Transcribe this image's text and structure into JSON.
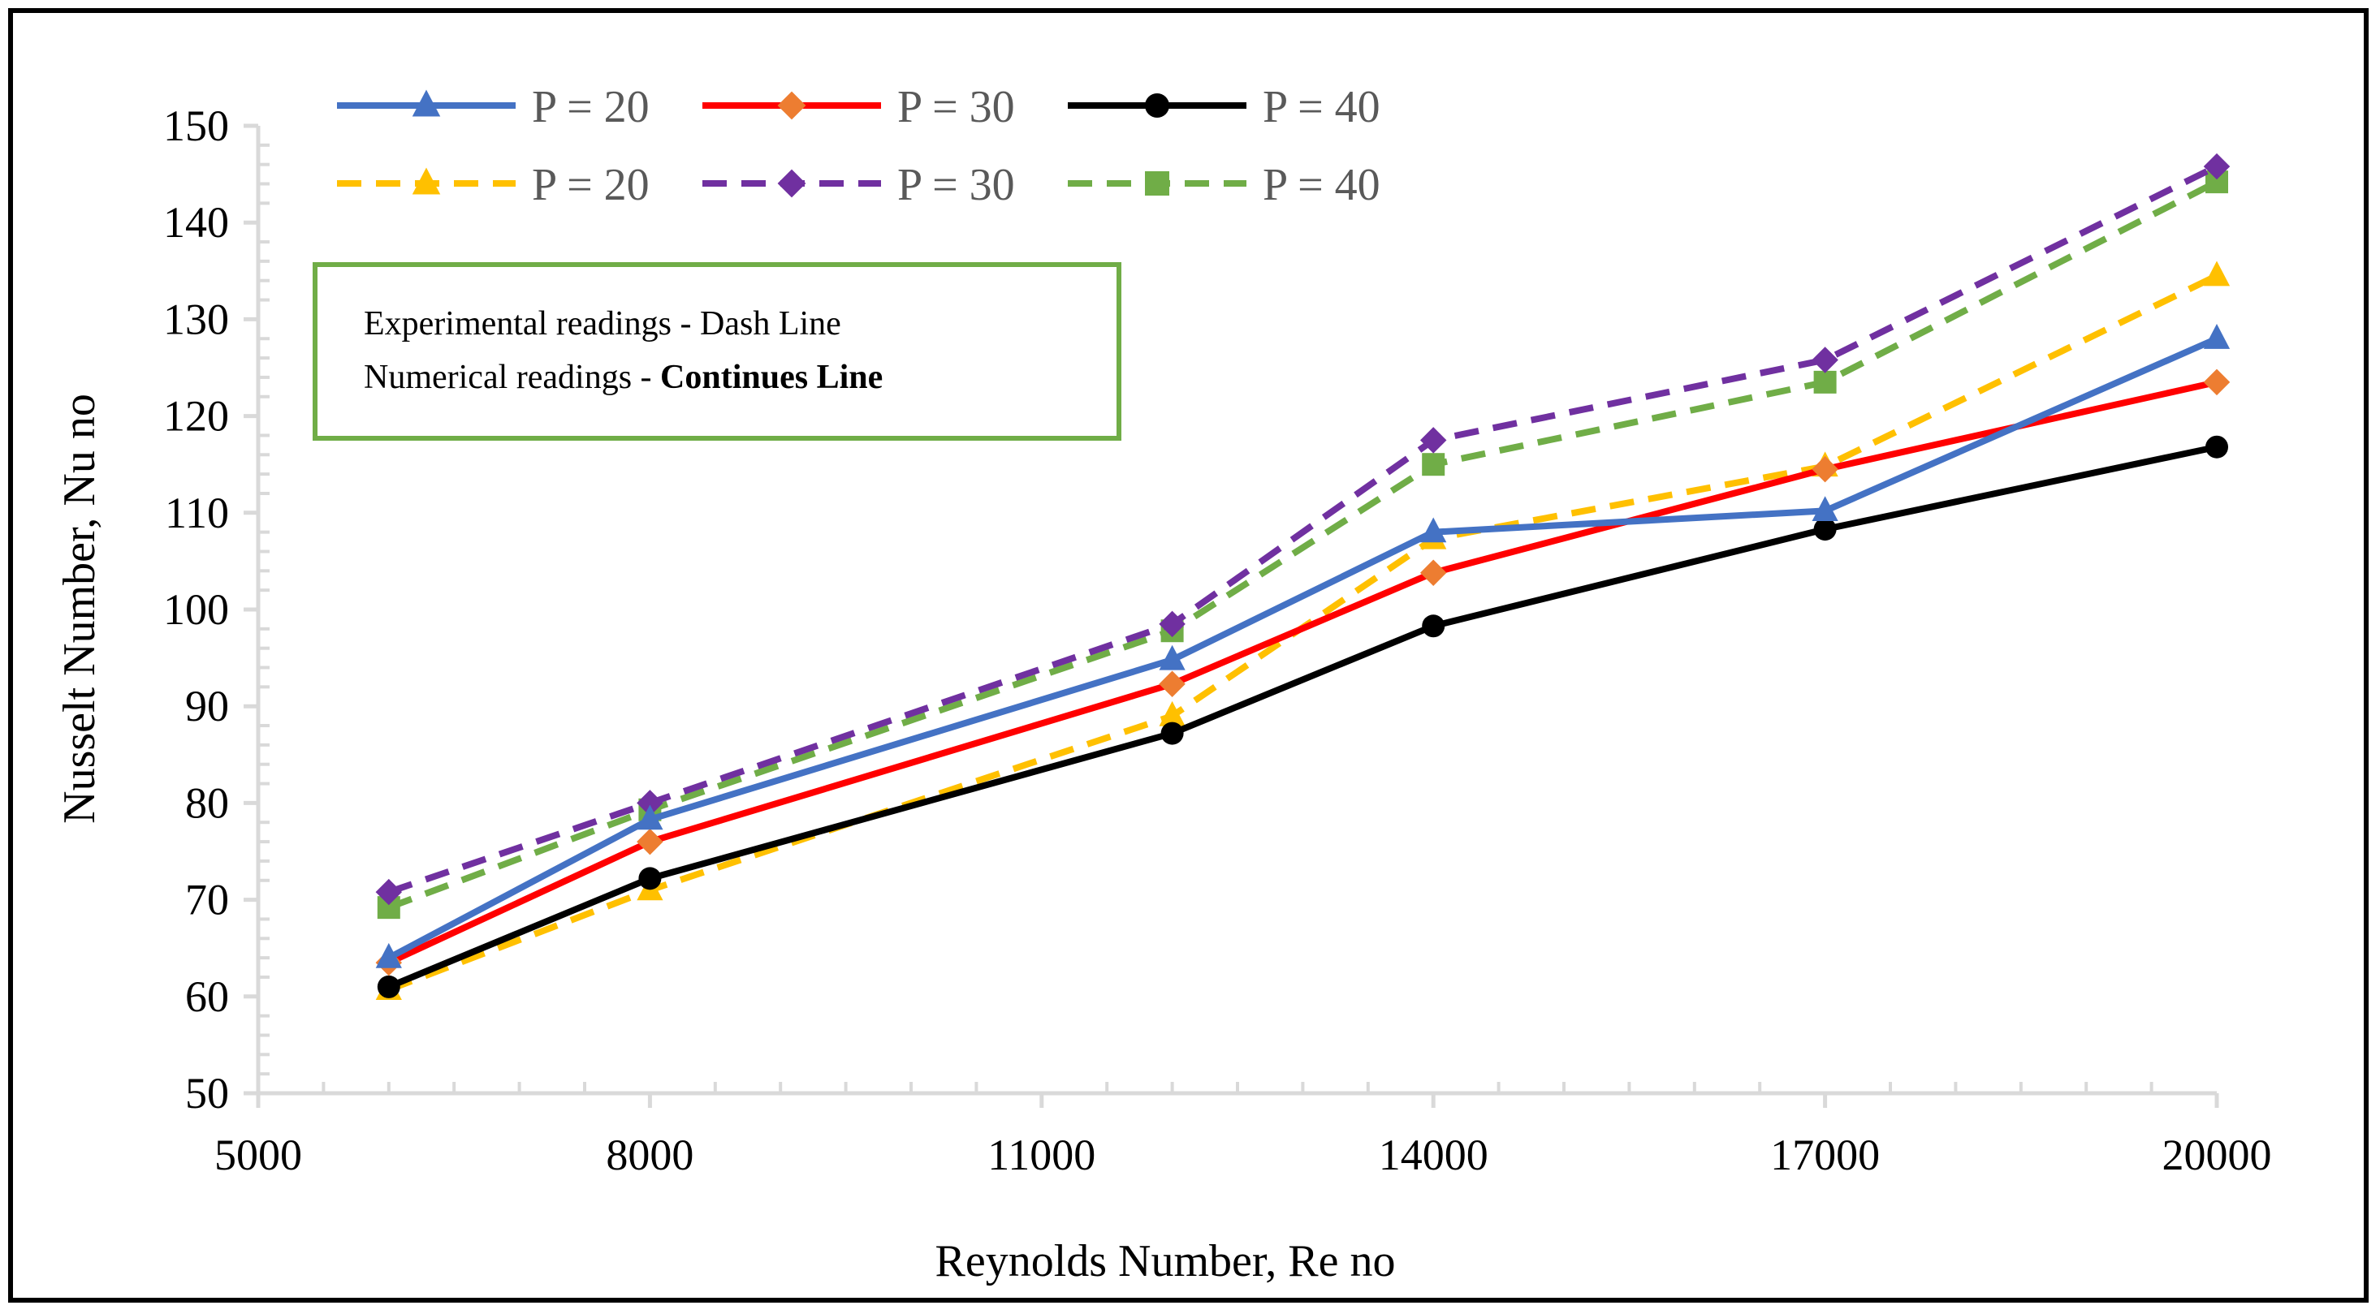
{
  "chart_data": {
    "type": "line",
    "title": "",
    "xlabel": "Reynolds Number, Re no",
    "ylabel": "Nusselt Number, Nu no",
    "xlim": [
      5000,
      20000
    ],
    "ylim": [
      50,
      150
    ],
    "x_ticks": [
      5000,
      8000,
      11000,
      14000,
      17000,
      20000
    ],
    "y_ticks": [
      50,
      60,
      70,
      80,
      90,
      100,
      110,
      120,
      130,
      140,
      150
    ],
    "x": [
      6000,
      8000,
      12000,
      14000,
      17000,
      20000
    ],
    "legend_position": "top-left",
    "grid": false,
    "series": [
      {
        "name": "P = 20",
        "style": "solid",
        "marker": "triangle",
        "color": "#4472C4",
        "values": [
          64,
          78.3,
          94.8,
          108,
          110.2,
          128
        ]
      },
      {
        "name": "P = 30",
        "style": "solid",
        "marker": "diamond",
        "color": "#FF0000",
        "marker_color": "#ED7D31",
        "values": [
          63.5,
          76,
          92.3,
          103.8,
          114.5,
          123.5
        ]
      },
      {
        "name": "P = 40",
        "style": "solid",
        "marker": "circle",
        "color": "#000000",
        "values": [
          61,
          72.2,
          87.2,
          98.3,
          108.3,
          116.8
        ]
      },
      {
        "name": "P = 20",
        "style": "dashed",
        "marker": "triangle",
        "color": "#FFC000",
        "values": [
          60.7,
          71,
          89,
          107.3,
          114.8,
          134.5
        ]
      },
      {
        "name": "P = 30",
        "style": "dashed",
        "marker": "diamond",
        "color": "#7030A0",
        "values": [
          70.8,
          80,
          98.5,
          117.5,
          125.8,
          145.8
        ]
      },
      {
        "name": "P = 40",
        "style": "dashed",
        "marker": "square",
        "color": "#70AD47",
        "values": [
          69.2,
          79.3,
          97.8,
          115,
          123.5,
          144.2
        ]
      }
    ],
    "annotation": {
      "line1": "Experimental readings - Dash Line",
      "line2_prefix": "Numerical readings - ",
      "line2_bold": "Continues Line",
      "border_color": "#70AD47"
    }
  }
}
